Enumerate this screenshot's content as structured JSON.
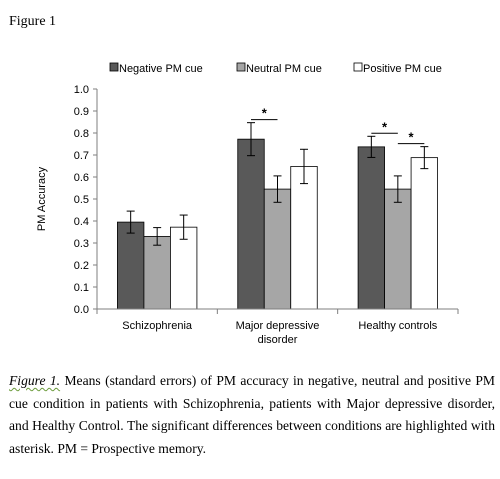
{
  "figure_title": "Figure 1",
  "caption": {
    "label": "Figure 1.",
    "text": " Means (standard errors) of PM accuracy in negative, neutral and positive PM cue condition in patients with Schizophrenia, patients with Major depressive disorder, and Healthy Control. The significant differences between conditions are highlighted with asterisk. PM = Prospective memory."
  },
  "chart_data": {
    "type": "bar",
    "title": "",
    "xlabel": "",
    "ylabel": "PM Accuracy",
    "ylim": [
      0,
      1.0
    ],
    "yticks": [
      "0.0",
      "0.1",
      "0.2",
      "0.3",
      "0.4",
      "0.5",
      "0.6",
      "0.7",
      "0.8",
      "0.9",
      "1.0"
    ],
    "grid": false,
    "legend_position": "top",
    "categories": [
      [
        "Schizophrenia"
      ],
      [
        "Major depressive",
        "disorder"
      ],
      [
        "Healthy controls"
      ]
    ],
    "series": [
      {
        "name": "Negative PM cue",
        "color": "#595959",
        "values": [
          0.395,
          0.772,
          0.737
        ],
        "errors": [
          0.05,
          0.075,
          0.048
        ]
      },
      {
        "name": "Neutral PM cue",
        "color": "#a6a6a6",
        "values": [
          0.33,
          0.545,
          0.545
        ],
        "errors": [
          0.04,
          0.06,
          0.06
        ]
      },
      {
        "name": "Positive PM cue",
        "color": "#ffffff",
        "values": [
          0.372,
          0.648,
          0.688
        ],
        "errors": [
          0.055,
          0.078,
          0.05
        ]
      }
    ],
    "significance": [
      {
        "category": 1,
        "from": 0,
        "to": 1,
        "label": "*"
      },
      {
        "category": 2,
        "from": 0,
        "to": 1,
        "label": "*"
      },
      {
        "category": 2,
        "from": 1,
        "to": 2,
        "label": "*"
      }
    ]
  }
}
